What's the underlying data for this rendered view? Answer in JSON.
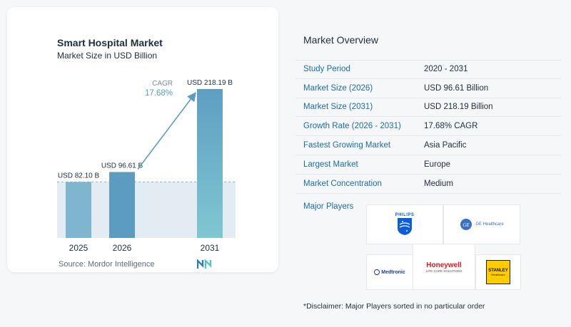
{
  "colors": {
    "bar_light": "#7fb5cf",
    "bar_dark": "#5c9cc0",
    "bar_2031_top": "#5e9ec2",
    "bar_2031_bottom": "#7fc6d1",
    "label_blue": "#1b6da8",
    "band_fill": "#dde7ef"
  },
  "chart_data": {
    "type": "bar",
    "title": "Smart Hospital Market",
    "subtitle": "Market Size in USD Billion",
    "categories": [
      "2025",
      "2026",
      "2031"
    ],
    "values": [
      82.1,
      96.61,
      218.19
    ],
    "data_labels": [
      "USD 82.10 B",
      "USD 96.61 B",
      "USD 218.19 B"
    ],
    "annotation": {
      "label": "CAGR",
      "value": "17.68%"
    },
    "ylim": [
      0,
      218.19
    ],
    "grid": false,
    "legend": "none"
  },
  "source": "Source:  Mordor Intelligence",
  "overview": {
    "title": "Market Overview",
    "rows": [
      {
        "label": "Study Period",
        "value": "2020 - 2031"
      },
      {
        "label": "Market Size (2026)",
        "value": "USD 96.61 Billion"
      },
      {
        "label": "Market Size (2031)",
        "value": "USD 218.19 Billion"
      },
      {
        "label": "Growth Rate (2026 - 2031)",
        "value": "17.68% CAGR"
      },
      {
        "label": "Fastest Growing Market",
        "value": "Asia Pacific"
      },
      {
        "label": "Largest Market",
        "value": "Europe"
      },
      {
        "label": "Market Concentration",
        "value": "Medium"
      }
    ]
  },
  "players": {
    "label": "Major Players",
    "names": [
      "PHILIPS",
      "GE Healthcare",
      "Medtronic",
      "Honeywell",
      "LIFE CARE SOLUTIONS",
      "STANLEY",
      "Healthcare"
    ]
  },
  "disclaimer": "*Disclaimer: Major Players sorted in no particular order"
}
